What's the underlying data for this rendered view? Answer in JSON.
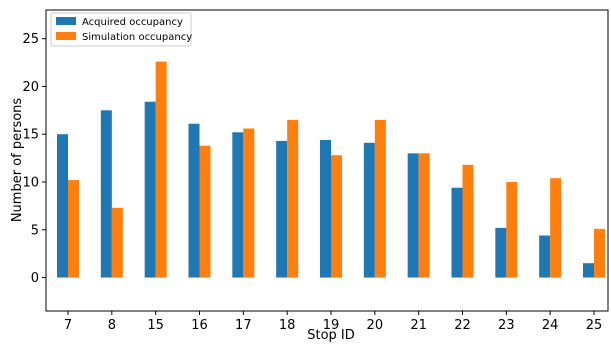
{
  "chart_data": {
    "type": "bar",
    "title": "",
    "xlabel": "Stop ID",
    "ylabel": "Number of persons",
    "categories": [
      "7",
      "8",
      "15",
      "16",
      "17",
      "18",
      "19",
      "20",
      "21",
      "22",
      "23",
      "24",
      "25"
    ],
    "series": [
      {
        "name": "Acquired occupancy",
        "color": "#1f77b4",
        "values": [
          15.0,
          17.5,
          18.4,
          16.1,
          15.2,
          14.3,
          14.4,
          14.1,
          13.0,
          9.4,
          5.2,
          4.4,
          1.5
        ]
      },
      {
        "name": "Simulation occupancy",
        "color": "#ff7f0e",
        "values": [
          10.2,
          7.3,
          22.6,
          13.8,
          15.6,
          16.5,
          12.8,
          16.5,
          13.0,
          11.8,
          10.0,
          10.4,
          5.1
        ]
      }
    ],
    "ylim": [
      -3.5,
      28
    ],
    "yticks": [
      0,
      5,
      10,
      15,
      20,
      25
    ],
    "grid": false,
    "legend_position": "top-left"
  }
}
